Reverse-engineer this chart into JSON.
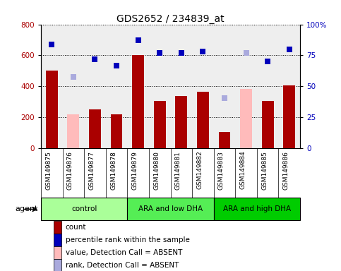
{
  "title": "GDS2652 / 234839_at",
  "samples": [
    "GSM149875",
    "GSM149876",
    "GSM149877",
    "GSM149878",
    "GSM149879",
    "GSM149880",
    "GSM149881",
    "GSM149882",
    "GSM149883",
    "GSM149884",
    "GSM149885",
    "GSM149886"
  ],
  "count_values": [
    500,
    null,
    250,
    220,
    600,
    305,
    340,
    365,
    105,
    null,
    305,
    405
  ],
  "count_absent_values": [
    null,
    220,
    null,
    null,
    null,
    null,
    null,
    null,
    null,
    385,
    null,
    null
  ],
  "percentile_values": [
    670,
    null,
    575,
    535,
    700,
    615,
    615,
    625,
    null,
    null,
    560,
    640
  ],
  "percentile_absent_values": [
    null,
    460,
    null,
    null,
    null,
    null,
    null,
    null,
    325,
    615,
    null,
    null
  ],
  "groups": [
    {
      "label": "control",
      "start": 0,
      "end": 4,
      "color": "#aaff99"
    },
    {
      "label": "ARA and low DHA",
      "start": 4,
      "end": 8,
      "color": "#55ee55"
    },
    {
      "label": "ARA and high DHA",
      "start": 8,
      "end": 12,
      "color": "#00cc00"
    }
  ],
  "ylim_left": [
    0,
    800
  ],
  "yticks_left": [
    0,
    200,
    400,
    600,
    800
  ],
  "yticks_right": [
    0,
    25,
    50,
    75,
    100
  ],
  "yticklabels_right": [
    "0",
    "25",
    "50",
    "75",
    "100%"
  ],
  "bar_color": "#aa0000",
  "bar_absent_color": "#ffbbbb",
  "dot_color": "#0000bb",
  "dot_absent_color": "#aaaadd",
  "agent_label": "agent",
  "legend_items": [
    {
      "color": "#aa0000",
      "label": "count"
    },
    {
      "color": "#0000bb",
      "label": "percentile rank within the sample"
    },
    {
      "color": "#ffbbbb",
      "label": "value, Detection Call = ABSENT"
    },
    {
      "color": "#aaaadd",
      "label": "rank, Detection Call = ABSENT"
    }
  ]
}
